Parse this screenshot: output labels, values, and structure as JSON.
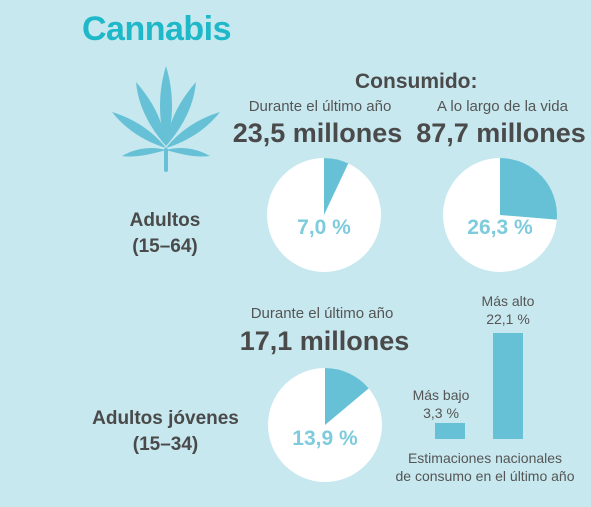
{
  "title": "Cannabis",
  "consumed_label": "Consumido:",
  "adults": {
    "group": "Adultos",
    "age": "(15–64)",
    "last_year": {
      "label": "Durante el último año",
      "amount": "23,5 millones",
      "pct_label": "7,0 %"
    },
    "lifetime": {
      "label": "A lo largo de la vida",
      "amount": "87,7 millones",
      "pct_label": "26,3 %"
    }
  },
  "young": {
    "group": "Adultos jóvenes",
    "age": "(15–34)",
    "last_year": {
      "label": "Durante el último año",
      "amount": "17,1 millones",
      "pct_label": "13,9 %"
    }
  },
  "bars": {
    "low_label": "Más bajo",
    "low_value": "3,3 %",
    "high_label": "Más alto",
    "high_value": "22,1 %",
    "caption_line1": "Estimaciones nacionales",
    "caption_line2": "de consumo en el último año"
  },
  "colors": {
    "accent": "#1fb8c8",
    "slice": "#67c1d6",
    "pie_bg": "#ffffff",
    "background": "#c7e8ef"
  },
  "icons": {
    "leaf": "cannabis-leaf-icon"
  },
  "chart_data": [
    {
      "type": "pie",
      "slices": [
        {
          "value": 7.0
        },
        {
          "value": 93.0
        }
      ]
    },
    {
      "type": "pie",
      "slices": [
        {
          "value": 26.3
        },
        {
          "value": 73.7
        }
      ]
    },
    {
      "type": "pie",
      "slices": [
        {
          "value": 13.9
        },
        {
          "value": 86.1
        }
      ]
    },
    {
      "type": "bar",
      "categories": [
        "Más bajo",
        "Más alto"
      ],
      "values": [
        3.3,
        22.1
      ]
    }
  ]
}
